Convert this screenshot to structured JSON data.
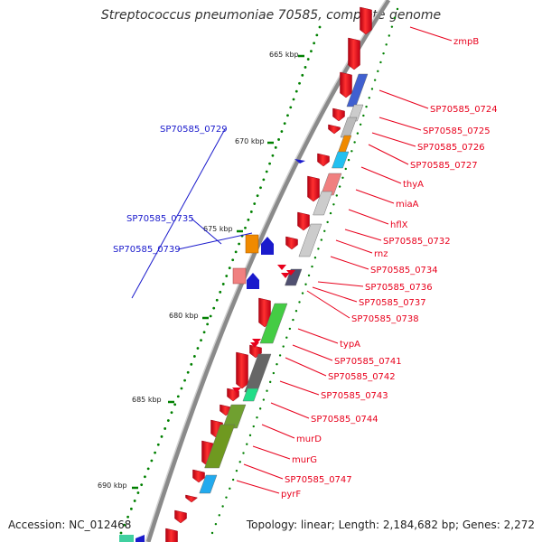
{
  "title": "Streptococcus pneumoniae 70585, complete genome",
  "accession": "Accession: NC_012468",
  "topology": "Topology: linear; Length: 2,184,682 bp; Genes: 2,272",
  "ticks": [
    "665 kbp",
    "670 kbp",
    "675 kbp",
    "680 kbp",
    "685 kbp",
    "690 kbp"
  ],
  "genes_forward": [
    "zmpB",
    "SP70585_0724",
    "SP70585_0725",
    "SP70585_0726",
    "SP70585_0727",
    "thyA",
    "miaA",
    "hflX",
    "SP70585_0732",
    "rnz",
    "SP70585_0734",
    "SP70585_0736",
    "SP70585_0737",
    "SP70585_0738",
    "typA",
    "SP70585_0741",
    "SP70585_0742",
    "SP70585_0743",
    "SP70585_0744",
    "murD",
    "murG",
    "SP70585_0747",
    "pyrF"
  ],
  "genes_reverse": [
    "SP70585_0729",
    "SP70585_0735",
    "SP70585_0739"
  ],
  "colors": {
    "forward": "#e8001c",
    "reverse": "#1a1acc",
    "backbone": "#8a8a8a",
    "tick": "#008000"
  }
}
